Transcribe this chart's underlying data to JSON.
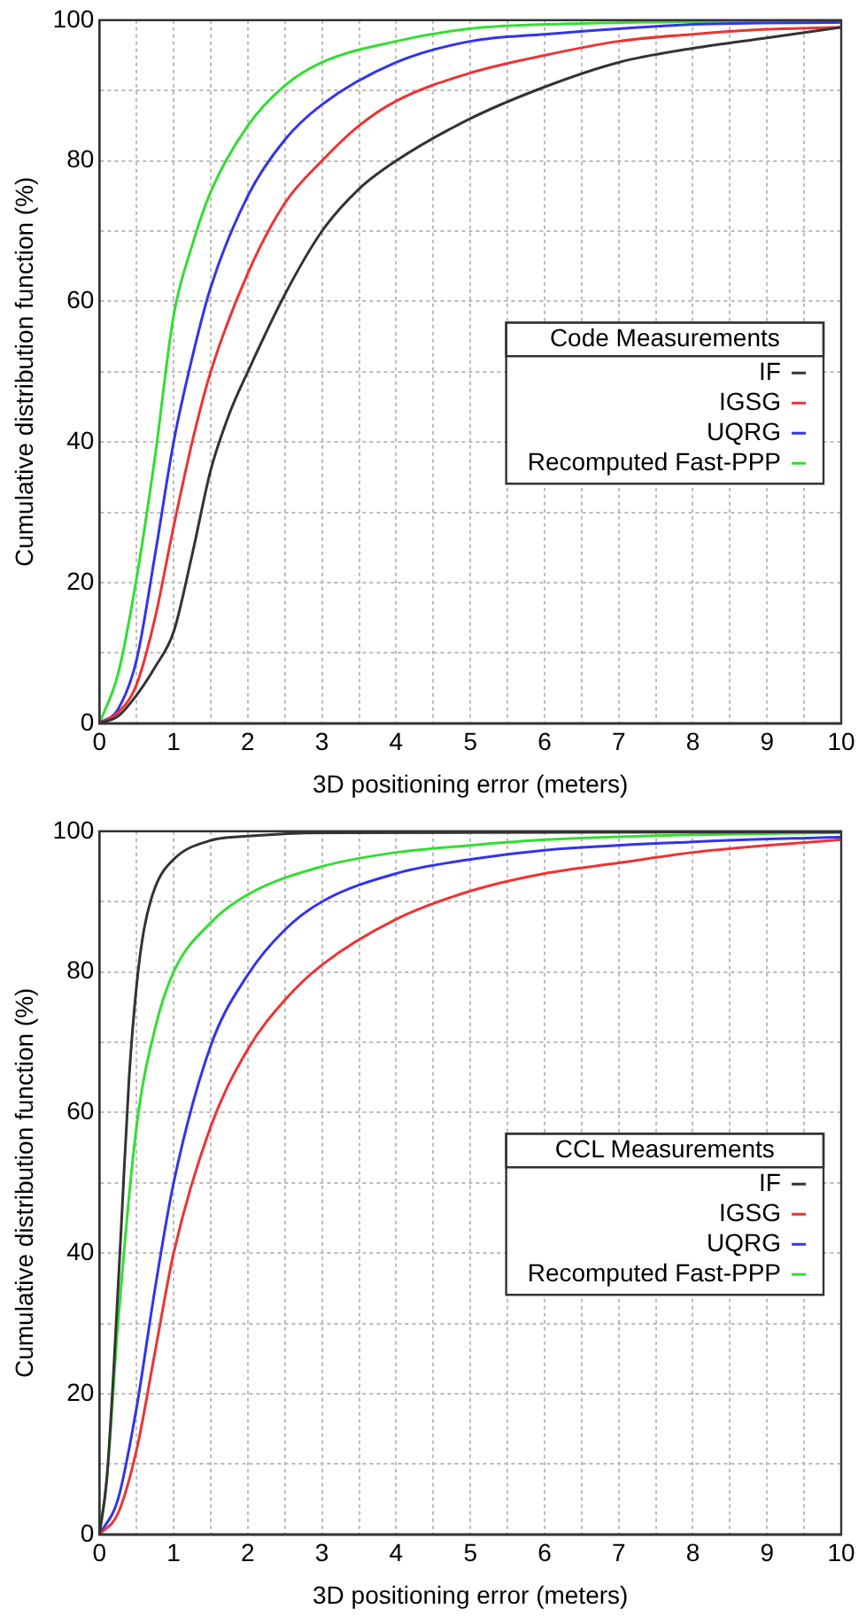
{
  "chart_data": [
    {
      "type": "line",
      "xlabel": "3D positioning error (meters)",
      "ylabel": "Cumulative distribution function (%)",
      "legend_title": "Code Measurements",
      "legend": "right",
      "grid": true,
      "marker": "none",
      "line_style": "solid",
      "xlim": [
        0,
        10
      ],
      "ylim": [
        0,
        100
      ],
      "xticks": [
        0,
        {
          "value": 0.5,
          "label": null
        },
        1,
        {
          "value": 1.5,
          "label": null
        },
        2,
        {
          "value": 2.5,
          "label": null
        },
        3,
        {
          "value": 3.5,
          "label": null
        },
        4,
        {
          "value": 4.5,
          "label": null
        },
        5,
        {
          "value": 5.5,
          "label": null
        },
        6,
        {
          "value": 6.5,
          "label": null
        },
        7,
        {
          "value": 7.5,
          "label": null
        },
        8,
        {
          "value": 8.5,
          "label": null
        },
        9,
        {
          "value": 9.5,
          "label": null
        },
        10
      ],
      "yticks": [
        0,
        {
          "value": 10,
          "label": null
        },
        20,
        {
          "value": 30,
          "label": null
        },
        40,
        {
          "value": 50,
          "label": null
        },
        60,
        {
          "value": 70,
          "label": null
        },
        80,
        {
          "value": 90,
          "label": null
        },
        100
      ],
      "series": [
        {
          "name": "IF",
          "color": "#333333",
          "x": [
            0,
            0.25,
            0.5,
            0.75,
            1,
            1.25,
            1.5,
            1.75,
            2,
            2.5,
            3,
            3.5,
            4,
            5,
            6,
            7,
            8,
            9,
            10
          ],
          "values": [
            0,
            1,
            4,
            8,
            13,
            24,
            36,
            44,
            50,
            61,
            70,
            76,
            80,
            86,
            90.5,
            94,
            96,
            97.5,
            99
          ]
        },
        {
          "name": "IGSG",
          "color": "#ee3333",
          "x": [
            0,
            0.25,
            0.5,
            0.75,
            1,
            1.25,
            1.5,
            2,
            2.5,
            3,
            3.5,
            4,
            5,
            6,
            7,
            8,
            9,
            10
          ],
          "values": [
            0,
            1.5,
            5.5,
            15,
            28,
            40,
            50,
            64,
            74,
            80,
            85,
            88.5,
            92.5,
            95,
            97,
            98,
            98.7,
            99
          ]
        },
        {
          "name": "UQRG",
          "color": "#3333ee",
          "x": [
            0,
            0.25,
            0.5,
            0.75,
            1,
            1.25,
            1.5,
            2,
            2.5,
            3,
            4,
            5,
            6,
            8,
            10
          ],
          "values": [
            0,
            2,
            9,
            24,
            40,
            52,
            62,
            75,
            83,
            88,
            94,
            97,
            98,
            99.4,
            99.7
          ]
        },
        {
          "name": "Recomputed Fast-PPP",
          "color": "#33dd33",
          "x": [
            0,
            0.25,
            0.5,
            0.75,
            1,
            1.25,
            1.5,
            2,
            2.5,
            3,
            4,
            5,
            6,
            8,
            10
          ],
          "values": [
            0,
            7,
            20.6,
            38,
            58,
            68,
            75.6,
            85,
            90.7,
            94,
            97,
            98.8,
            99.4,
            99.8,
            99.9
          ]
        }
      ]
    },
    {
      "type": "line",
      "xlabel": "3D positioning error (meters)",
      "ylabel": "Cumulative distribution function (%)",
      "legend_title": "CCL Measurements",
      "legend": "right",
      "grid": true,
      "marker": "none",
      "line_style": "solid",
      "xlim": [
        0,
        10
      ],
      "ylim": [
        0,
        100
      ],
      "xticks": [
        0,
        {
          "value": 0.5,
          "label": null
        },
        1,
        {
          "value": 1.5,
          "label": null
        },
        2,
        {
          "value": 2.5,
          "label": null
        },
        3,
        {
          "value": 3.5,
          "label": null
        },
        4,
        {
          "value": 4.5,
          "label": null
        },
        5,
        {
          "value": 5.5,
          "label": null
        },
        6,
        {
          "value": 6.5,
          "label": null
        },
        7,
        {
          "value": 7.5,
          "label": null
        },
        8,
        {
          "value": 8.5,
          "label": null
        },
        9,
        {
          "value": 9.5,
          "label": null
        },
        10
      ],
      "yticks": [
        0,
        {
          "value": 10,
          "label": null
        },
        20,
        {
          "value": 30,
          "label": null
        },
        40,
        {
          "value": 50,
          "label": null
        },
        60,
        {
          "value": 70,
          "label": null
        },
        80,
        {
          "value": 90,
          "label": null
        },
        100
      ],
      "series": [
        {
          "name": "IF",
          "color": "#333333",
          "x": [
            0,
            0.1,
            0.2,
            0.3,
            0.4,
            0.5,
            0.6,
            0.75,
            1,
            1.5,
            2,
            3,
            10
          ],
          "values": [
            0,
            8,
            25,
            45,
            65,
            78,
            86,
            92,
            96,
            98.7,
            99.3,
            99.8,
            99.9
          ]
        },
        {
          "name": "IGSG",
          "color": "#ee3333",
          "x": [
            0,
            0.25,
            0.5,
            0.75,
            1,
            1.5,
            2,
            2.5,
            3,
            4,
            5,
            6,
            7,
            8,
            9,
            10
          ],
          "values": [
            0,
            3,
            12,
            26,
            40,
            58,
            69,
            76,
            81,
            87.5,
            91.5,
            94,
            95.5,
            97,
            98,
            98.8
          ]
        },
        {
          "name": "UQRG",
          "color": "#3333ee",
          "x": [
            0,
            0.25,
            0.5,
            0.75,
            1,
            1.5,
            2,
            2.5,
            3,
            4,
            5,
            6,
            8,
            10
          ],
          "values": [
            0,
            5,
            18,
            35,
            50,
            69.5,
            79.6,
            86,
            90,
            94,
            96,
            97.3,
            98.5,
            99.2
          ]
        },
        {
          "name": "Recomputed Fast-PPP",
          "color": "#33dd33",
          "x": [
            0,
            0.1,
            0.25,
            0.5,
            0.75,
            1,
            1.5,
            2,
            3,
            4,
            5,
            6,
            8,
            10
          ],
          "values": [
            0,
            8,
            30,
            58,
            72,
            80,
            87,
            91,
            95,
            97,
            98,
            98.8,
            99.5,
            99.8
          ]
        }
      ]
    }
  ]
}
